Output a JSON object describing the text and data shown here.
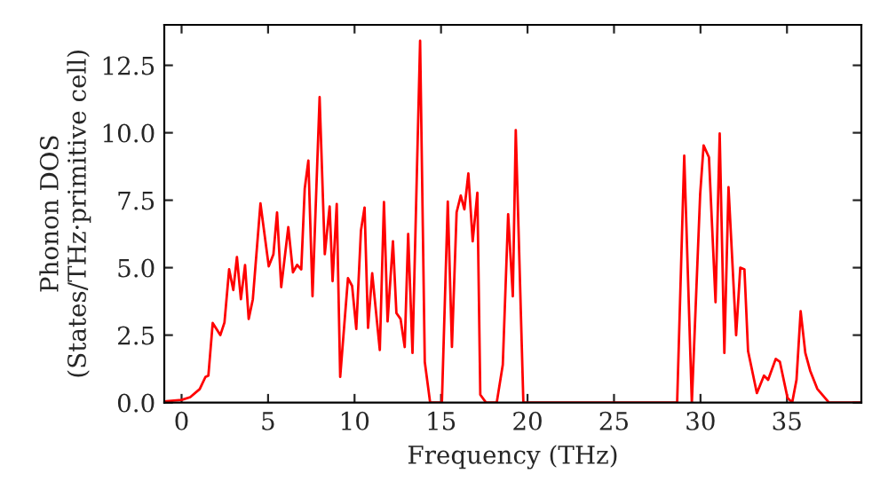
{
  "chart_data": {
    "type": "line",
    "xlabel": "Frequency (THz)",
    "ylabel": "Phonon DOS\n(States/THz·primitive cell)",
    "x": [
      -0.9,
      0,
      0.5,
      1.05,
      1.38,
      1.55,
      1.8,
      2.24,
      2.48,
      2.75,
      2.99,
      3.2,
      3.43,
      3.67,
      3.88,
      4.12,
      4.56,
      5.04,
      5.31,
      5.52,
      5.76,
      6.17,
      6.44,
      6.68,
      6.92,
      7.12,
      7.33,
      7.57,
      7.98,
      8.28,
      8.56,
      8.73,
      8.97,
      9.17,
      9.62,
      9.86,
      10.1,
      10.37,
      10.58,
      10.78,
      11.02,
      11.46,
      11.7,
      11.91,
      12.22,
      12.42,
      12.66,
      12.9,
      13.1,
      13.35,
      13.79,
      14.06,
      14.37,
      15.05,
      15.39,
      15.63,
      15.9,
      16.14,
      16.35,
      16.58,
      16.83,
      17.1,
      17.27,
      17.6,
      18.22,
      18.57,
      18.88,
      19.15,
      19.32,
      19.76,
      28.65,
      29.06,
      29.5,
      29.98,
      30.18,
      30.49,
      30.87,
      31.11,
      31.38,
      31.62,
      32.06,
      32.3,
      32.54,
      32.75,
      33.26,
      33.67,
      33.91,
      34.35,
      34.59,
      35.03,
      35.3,
      35.55,
      35.79,
      36.06,
      36.34,
      36.75,
      37.43,
      39.3
    ],
    "series": [
      {
        "color": "#ff0000",
        "values": [
          0.05,
          0.1,
          0.2,
          0.5,
          0.95,
          1.0,
          2.95,
          2.5,
          2.97,
          4.94,
          4.17,
          5.39,
          3.83,
          5.1,
          3.1,
          3.83,
          7.38,
          5.05,
          5.5,
          7.05,
          4.28,
          6.5,
          4.83,
          5.1,
          4.94,
          7.93,
          8.97,
          3.94,
          11.32,
          5.5,
          7.27,
          4.5,
          7.36,
          0.95,
          4.61,
          4.32,
          2.73,
          6.38,
          7.23,
          2.77,
          4.79,
          1.95,
          7.43,
          3.01,
          5.98,
          3.32,
          3.1,
          2.06,
          6.25,
          1.84,
          13.41,
          1.51,
          0,
          0,
          7.45,
          2.06,
          7.05,
          7.67,
          7.16,
          8.49,
          5.98,
          7.78,
          0.29,
          0,
          0,
          1.4,
          6.98,
          3.94,
          10.1,
          0,
          0,
          9.15,
          0,
          7.71,
          9.53,
          9.09,
          3.72,
          9.97,
          1.84,
          7.98,
          2.5,
          5.0,
          4.94,
          1.91,
          0.35,
          1.0,
          0.84,
          1.62,
          1.51,
          0.18,
          0,
          0.84,
          3.39,
          1.84,
          1.18,
          0.51,
          0,
          0
        ]
      }
    ],
    "xlim": [
      -1,
      39.3
    ],
    "ylim": [
      0,
      14
    ],
    "xticks": [
      0,
      5,
      10,
      15,
      20,
      25,
      30,
      35
    ],
    "yticks": [
      {
        "value": 0,
        "label": "0.0"
      },
      {
        "value": 2.5,
        "label": "2.5"
      },
      {
        "value": 5,
        "label": "5.0"
      },
      {
        "value": 7.5,
        "label": "7.5"
      },
      {
        "value": 10,
        "label": "10.0"
      },
      {
        "value": 12.5,
        "label": "12.5"
      }
    ],
    "grid": false,
    "legend": false
  }
}
